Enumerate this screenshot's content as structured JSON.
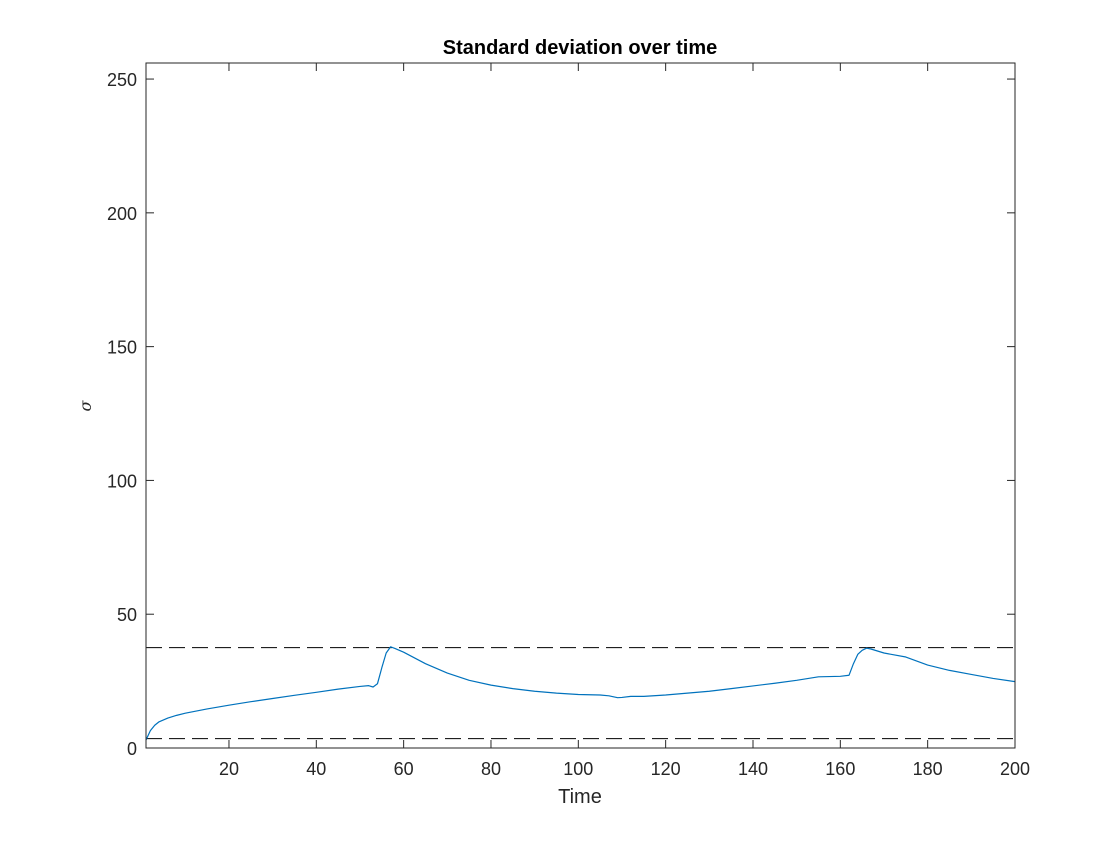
{
  "chart_data": {
    "type": "line",
    "title": "Standard deviation over time",
    "xlabel": "Time",
    "ylabel": "σ",
    "xlim": [
      1,
      200
    ],
    "ylim": [
      0,
      256
    ],
    "xticks": [
      20,
      40,
      60,
      80,
      100,
      120,
      140,
      160,
      180,
      200
    ],
    "yticks": [
      0,
      50,
      100,
      150,
      200,
      250
    ],
    "grid": false,
    "legend": "none",
    "series_color": "#0072BD",
    "reference_color": "#000000",
    "series": [
      {
        "x": [
          1,
          2,
          3,
          4,
          6,
          8,
          10,
          15,
          20,
          25,
          30,
          35,
          40,
          45,
          50,
          52,
          53,
          54,
          55,
          56,
          57,
          58,
          60,
          65,
          70,
          75,
          80,
          85,
          90,
          95,
          100,
          105,
          107,
          109,
          110,
          112,
          115,
          120,
          125,
          130,
          135,
          140,
          145,
          150,
          155,
          160,
          162,
          163,
          164,
          165,
          166,
          167,
          170,
          175,
          180,
          185,
          190,
          195,
          200
        ],
        "y": [
          3,
          6.5,
          8.5,
          9.8,
          11.2,
          12.2,
          13,
          14.6,
          16,
          17.3,
          18.5,
          19.7,
          20.8,
          22,
          23,
          23.3,
          22.8,
          24,
          30,
          35.5,
          37.8,
          37.2,
          35.8,
          31.5,
          28,
          25.3,
          23.5,
          22.2,
          21.2,
          20.5,
          20,
          19.8,
          19.5,
          18.8,
          18.9,
          19.3,
          19.3,
          19.8,
          20.5,
          21.2,
          22.2,
          23.2,
          24.2,
          25.3,
          26.6,
          26.8,
          27.2,
          31.5,
          35,
          36.5,
          37.3,
          37,
          35.5,
          34,
          31,
          29,
          27.5,
          26,
          24.8
        ]
      }
    ],
    "reference_lines": [
      37.5,
      3.5
    ]
  }
}
